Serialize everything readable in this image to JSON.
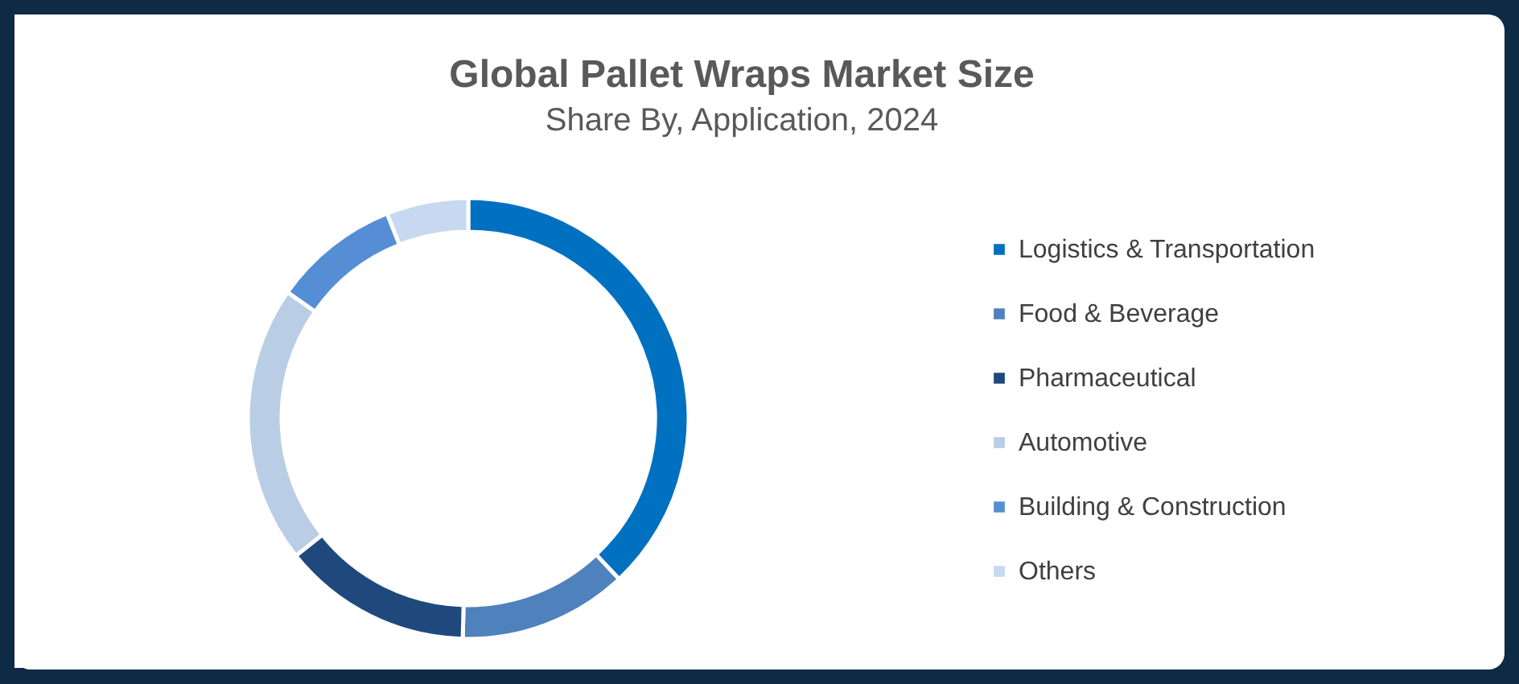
{
  "chart_data": {
    "type": "donut",
    "title": "Global Pallet Wraps Market Size",
    "subtitle": "Share By, Application, 2024",
    "categories": [
      "Logistics & Transportation",
      "Food & Beverage",
      "Pharmaceutical",
      "Automotive",
      "Building & Construction",
      "Others"
    ],
    "values": [
      38,
      12.4,
      13.9,
      20.4,
      9.3,
      6
    ],
    "colors": [
      "#0070c0",
      "#4f81bd",
      "#1f497d",
      "#b9cde5",
      "#558ed5",
      "#c6d9f1"
    ],
    "legend": "right"
  }
}
